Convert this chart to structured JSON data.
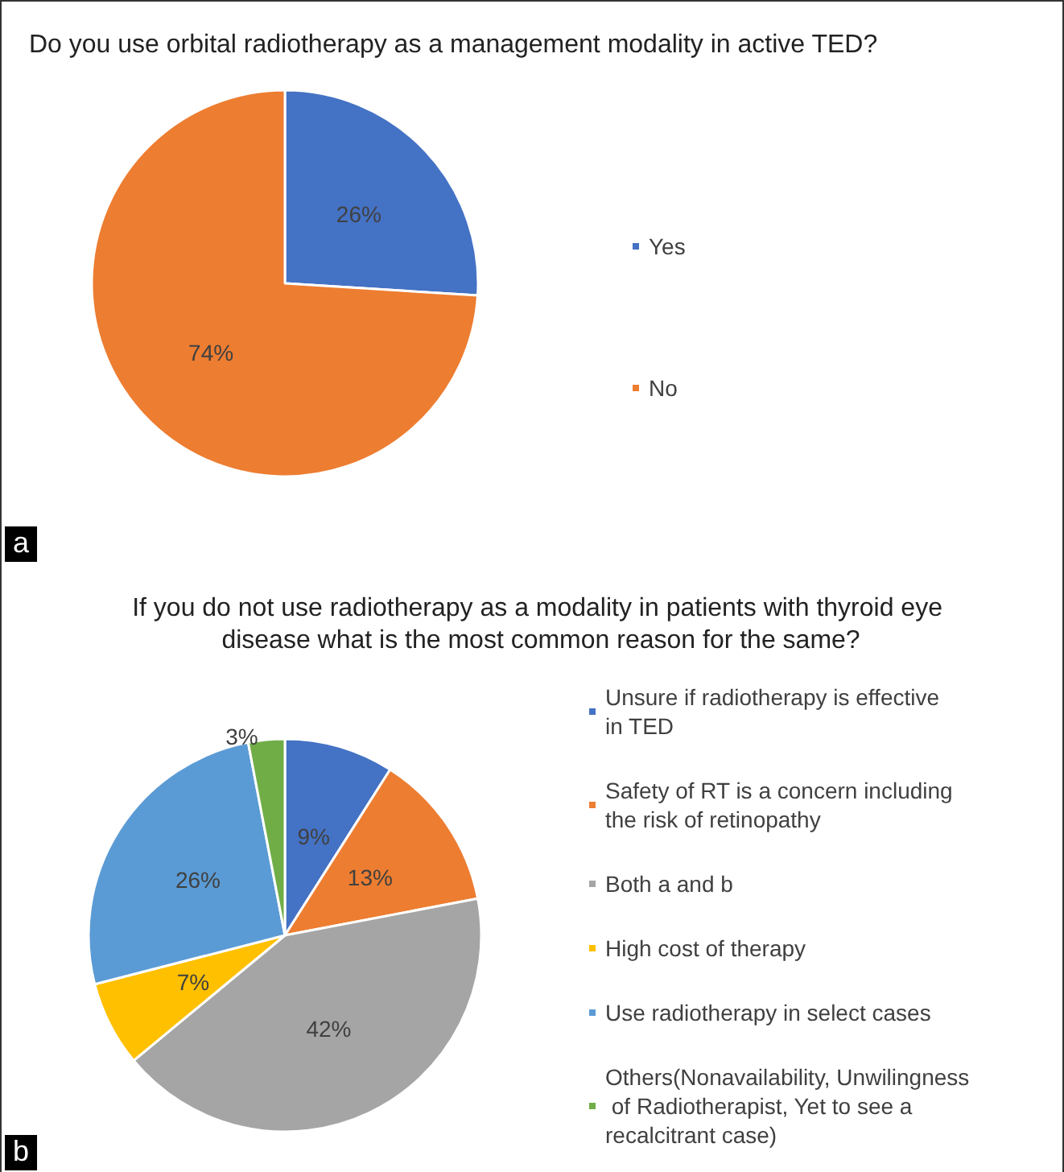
{
  "chart_data": [
    {
      "type": "pie",
      "title": "Do you use orbital radiotherapy as a management modality in active TED?",
      "categories": [
        "Yes",
        "No"
      ],
      "values": [
        26,
        74
      ],
      "colors": [
        "#4472c4",
        "#ed7d31"
      ],
      "value_labels": [
        "26%",
        "74%"
      ],
      "legend": "right",
      "annotations": [
        "a"
      ]
    },
    {
      "type": "pie",
      "title": "If you do not use radiotherapy as a modality in patients with thyroid eye disease what is the most common reason for the same?",
      "categories": [
        "Unsure if radiotherapy is effective in TED",
        "Safety of RT is a concern including the risk of retinopathy",
        "Both a and b",
        "High cost of therapy",
        "Use radiotherapy in select cases",
        "Others(Nonavailability, Unwilingness of Radiotherapist, Yet to see a recalcitrant case)"
      ],
      "values": [
        9,
        13,
        42,
        7,
        26,
        3
      ],
      "colors": [
        "#4472c4",
        "#ed7d31",
        "#a5a5a5",
        "#ffc000",
        "#5b9bd5",
        "#70ad47"
      ],
      "value_labels": [
        "9%",
        "13%",
        "42%",
        "7%",
        "26%",
        "3%"
      ],
      "legend": "right",
      "annotations": [
        "b"
      ]
    }
  ]
}
